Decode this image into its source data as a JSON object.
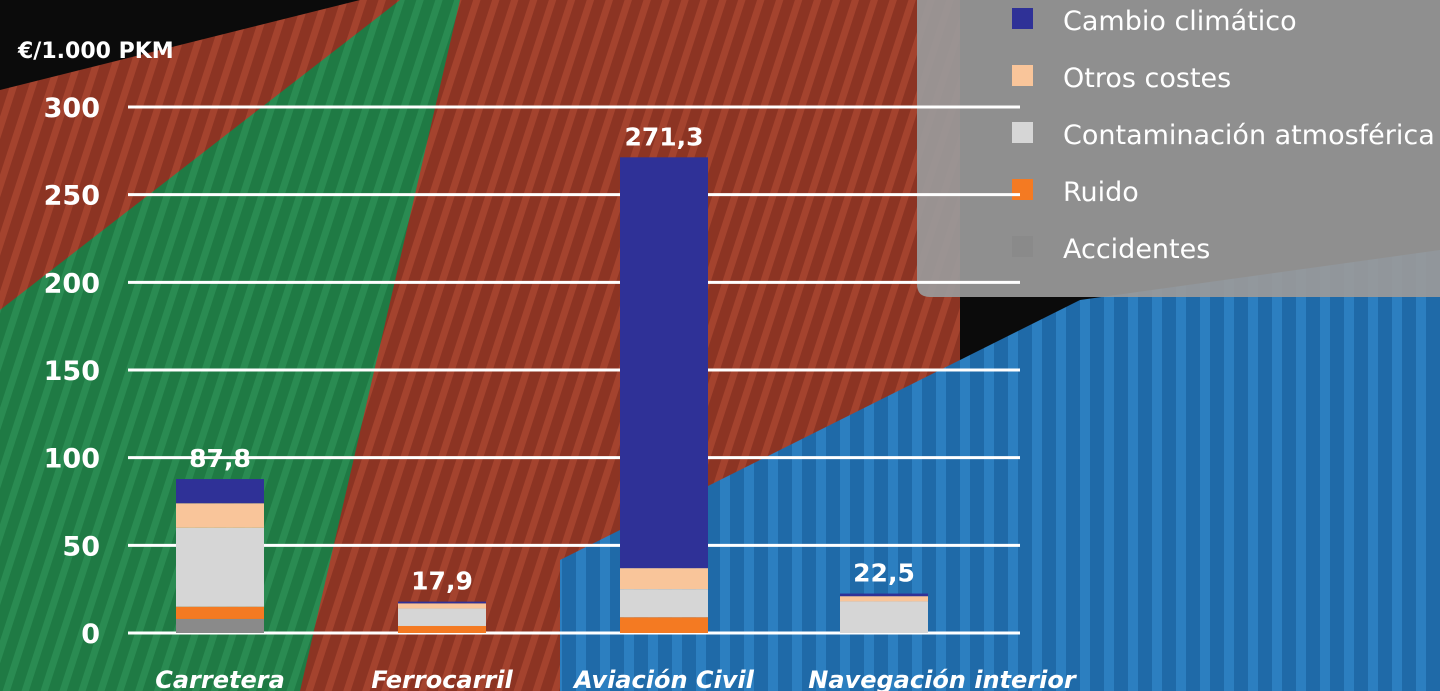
{
  "chart_data": {
    "type": "bar",
    "stacked": true,
    "ylabel": "€/1.000 PKM",
    "ylim": [
      0,
      300
    ],
    "yticks": [
      0,
      50,
      100,
      150,
      200,
      250,
      300
    ],
    "categories": [
      "Carretera",
      "Ferrocarril",
      "Aviación Civil",
      "Navegación interior"
    ],
    "totals": [
      "87,8",
      "17,9",
      "271,3",
      "22,5"
    ],
    "series": [
      {
        "name": "Accidentes",
        "color": "#8a8a8a",
        "values": [
          8,
          0,
          0,
          0
        ]
      },
      {
        "name": "Ruido",
        "color": "#f47a22",
        "values": [
          7,
          4,
          9,
          0
        ]
      },
      {
        "name": "Contaminación atmosférica",
        "color": "#d6d6d6",
        "values": [
          45,
          10,
          16,
          18
        ]
      },
      {
        "name": "Otros costes",
        "color": "#f9c59a",
        "values": [
          14,
          2.9,
          12,
          3
        ]
      },
      {
        "name": "Cambio climático",
        "color": "#2f3197",
        "values": [
          13.8,
          1,
          234.3,
          1.5
        ]
      }
    ],
    "legend": {
      "placement": "top-right",
      "order": [
        "Cambio climático",
        "Otros costes",
        "Contaminación atmosférica",
        "Ruido",
        "Accidentes"
      ]
    },
    "grid": true
  }
}
